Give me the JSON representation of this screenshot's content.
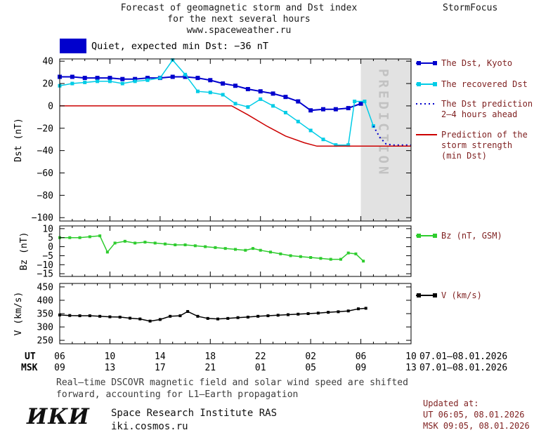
{
  "header": {
    "title_line1": "Forecast of geomagnetic storm and Dst index",
    "title_line2": "for the next several hours",
    "title_line3": "www.spaceweather.ru",
    "brand": "StormFocus"
  },
  "status": {
    "label": "Quiet, expected min Dst: −36 nT"
  },
  "colors": {
    "kyoto": "#0000CD",
    "recovered": "#00CCE6",
    "prediction": "#0000CD",
    "storm": "#CC0000",
    "bz": "#2ECC2E",
    "v": "#000000",
    "prediction_zone": "#E2E2E2",
    "prediction_label": "#C2C2C2",
    "legend_text": "#7E1F1F",
    "axis": "#000000"
  },
  "chart_data": [
    {
      "type": "line",
      "panel_id": "dst",
      "ylabel": "Dst (nT)",
      "ylim": [
        -100,
        40
      ],
      "yticks": [
        40,
        20,
        0,
        -20,
        -40,
        -60,
        -80,
        -100
      ],
      "xlim_hours": [
        6,
        34
      ],
      "xticks_hours": [
        6,
        10,
        14,
        18,
        22,
        26,
        30,
        34
      ],
      "prediction_zone": {
        "start": 30,
        "end": 34,
        "label": "PREDICTION"
      },
      "series": [
        {
          "id": "kyoto",
          "color_key": "kyoto",
          "name": "The Dst, Kyoto",
          "points": [
            [
              6,
              26
            ],
            [
              7,
              26
            ],
            [
              8,
              25
            ],
            [
              9,
              25
            ],
            [
              10,
              25
            ],
            [
              11,
              24
            ],
            [
              12,
              24
            ],
            [
              13,
              25
            ],
            [
              14,
              25
            ],
            [
              15,
              26
            ],
            [
              16,
              26
            ],
            [
              17,
              25
            ],
            [
              18,
              23
            ],
            [
              19,
              20
            ],
            [
              20,
              18
            ],
            [
              21,
              15
            ],
            [
              22,
              13
            ],
            [
              23,
              11
            ],
            [
              24,
              8
            ],
            [
              25,
              4
            ],
            [
              26,
              -4
            ],
            [
              27,
              -3
            ],
            [
              28,
              -3
            ],
            [
              29,
              -2
            ],
            [
              30,
              2
            ]
          ]
        },
        {
          "id": "recovered",
          "color_key": "recovered",
          "name": "The recovered Dst",
          "points": [
            [
              6,
              18
            ],
            [
              7,
              20
            ],
            [
              8,
              21
            ],
            [
              9,
              22
            ],
            [
              10,
              22
            ],
            [
              11,
              20
            ],
            [
              12,
              22
            ],
            [
              13,
              23
            ],
            [
              14,
              25
            ],
            [
              15,
              41
            ],
            [
              16,
              28
            ],
            [
              17,
              13
            ],
            [
              18,
              12
            ],
            [
              19,
              10
            ],
            [
              20,
              2
            ],
            [
              21,
              -1
            ],
            [
              22,
              6
            ],
            [
              23,
              0
            ],
            [
              24,
              -6
            ],
            [
              25,
              -14
            ],
            [
              26,
              -22
            ],
            [
              27,
              -30
            ],
            [
              28,
              -35
            ],
            [
              29,
              -35
            ],
            [
              29.5,
              4
            ],
            [
              30.3,
              4
            ],
            [
              31,
              -18
            ]
          ]
        },
        {
          "id": "dst_pred",
          "color_key": "prediction",
          "name": "The Dst prediction 2–4 hours ahead",
          "points": [
            [
              31,
              -18
            ],
            [
              31.5,
              -28
            ],
            [
              32,
              -34
            ],
            [
              32.5,
              -35
            ],
            [
              33,
              -35
            ],
            [
              33.5,
              -35
            ],
            [
              34,
              -35
            ]
          ]
        },
        {
          "id": "storm",
          "color_key": "storm",
          "name": "Prediction of the storm strength (min Dst)",
          "points": [
            [
              6,
              0
            ],
            [
              19.7,
              0
            ],
            [
              21,
              -8
            ],
            [
              22.5,
              -18
            ],
            [
              24,
              -27
            ],
            [
              25.5,
              -33
            ],
            [
              26.5,
              -36
            ],
            [
              34,
              -36
            ]
          ]
        }
      ]
    },
    {
      "type": "line",
      "panel_id": "bz",
      "ylabel": "Bz (nT)",
      "ylim": [
        -15,
        10
      ],
      "yticks": [
        10,
        5,
        0,
        -5,
        -10,
        -15
      ],
      "xlim_hours": [
        6,
        34
      ],
      "series": [
        {
          "id": "bz",
          "color_key": "bz",
          "name": "Bz (nT, GSM)",
          "points": [
            [
              6,
              5
            ],
            [
              6.8,
              5
            ],
            [
              7.6,
              5
            ],
            [
              8.4,
              5.5
            ],
            [
              9.2,
              6
            ],
            [
              9.8,
              -3
            ],
            [
              10.4,
              2
            ],
            [
              11.2,
              3
            ],
            [
              12,
              2
            ],
            [
              12.8,
              2.5
            ],
            [
              13.6,
              2
            ],
            [
              14.4,
              1.5
            ],
            [
              15.2,
              1
            ],
            [
              16,
              1
            ],
            [
              16.8,
              0.5
            ],
            [
              17.6,
              0
            ],
            [
              18.4,
              -0.5
            ],
            [
              19.2,
              -1
            ],
            [
              20,
              -1.5
            ],
            [
              20.8,
              -2
            ],
            [
              21.4,
              -1
            ],
            [
              22,
              -2
            ],
            [
              22.8,
              -3
            ],
            [
              23.6,
              -4
            ],
            [
              24.4,
              -5
            ],
            [
              25.2,
              -5.5
            ],
            [
              26,
              -6
            ],
            [
              26.8,
              -6.5
            ],
            [
              27.6,
              -7
            ],
            [
              28.4,
              -7
            ],
            [
              29,
              -3.5
            ],
            [
              29.6,
              -4
            ],
            [
              30.2,
              -8
            ]
          ]
        }
      ]
    },
    {
      "type": "line",
      "panel_id": "v",
      "ylabel": "V (km/s)",
      "ylim": [
        250,
        450
      ],
      "yticks": [
        450,
        400,
        350,
        300,
        250
      ],
      "xlim_hours": [
        6,
        34
      ],
      "series": [
        {
          "id": "v",
          "color_key": "v",
          "name": "V (km/s)",
          "points": [
            [
              6,
              345
            ],
            [
              6.8,
              343
            ],
            [
              7.6,
              342
            ],
            [
              8.4,
              342
            ],
            [
              9.2,
              340
            ],
            [
              10,
              338
            ],
            [
              10.8,
              337
            ],
            [
              11.6,
              333
            ],
            [
              12.4,
              330
            ],
            [
              13.2,
              322
            ],
            [
              14,
              328
            ],
            [
              14.8,
              340
            ],
            [
              15.6,
              342
            ],
            [
              16.2,
              358
            ],
            [
              17,
              340
            ],
            [
              17.8,
              332
            ],
            [
              18.6,
              330
            ],
            [
              19.4,
              332
            ],
            [
              20.2,
              335
            ],
            [
              21,
              337
            ],
            [
              21.8,
              340
            ],
            [
              22.6,
              342
            ],
            [
              23.4,
              344
            ],
            [
              24.2,
              346
            ],
            [
              25,
              348
            ],
            [
              25.8,
              350
            ],
            [
              26.6,
              352
            ],
            [
              27.4,
              355
            ],
            [
              28.2,
              357
            ],
            [
              29,
              360
            ],
            [
              29.8,
              368
            ],
            [
              30.4,
              370
            ]
          ]
        }
      ]
    }
  ],
  "legend": [
    {
      "color_key": "kyoto",
      "marker": "squares-line",
      "lines": [
        "The Dst, Kyoto"
      ]
    },
    {
      "color_key": "recovered",
      "marker": "squares-line",
      "lines": [
        "The recovered Dst"
      ]
    },
    {
      "color_key": "prediction",
      "marker": "dotted-line",
      "lines": [
        "The Dst prediction",
        "2–4 hours ahead"
      ]
    },
    {
      "color_key": "storm",
      "marker": "solid-line",
      "lines": [
        "Prediction of the",
        "storm strength",
        "(min Dst)"
      ]
    },
    {
      "color_key": "bz",
      "marker": "squares-line",
      "lines": [
        "Bz (nT, GSM)"
      ]
    },
    {
      "color_key": "v",
      "marker": "squares-line",
      "lines": [
        "V (km/s)"
      ]
    }
  ],
  "xaxis": {
    "ut_label": "UT",
    "msk_label": "MSK",
    "ut_ticks": [
      "06",
      "10",
      "14",
      "18",
      "22",
      "02",
      "06",
      "10"
    ],
    "msk_ticks": [
      "09",
      "13",
      "17",
      "21",
      "01",
      "05",
      "09",
      "13"
    ],
    "ut_date": "07.01–08.01.2026",
    "msk_date": "07.01–08.01.2026"
  },
  "caption": {
    "line1": "Real–time DSCOVR magnetic field and solar wind speed are shifted",
    "line2": "forward, accounting for L1–Earth propagation"
  },
  "footer": {
    "logo": "ИКИ",
    "institute": "Space Research Institute RAS",
    "site": "iki.cosmos.ru",
    "updated_label": "Updated at:",
    "updated_ut": "UT  06:05, 08.01.2026",
    "updated_msk": "MSK 09:05, 08.01.2026"
  }
}
